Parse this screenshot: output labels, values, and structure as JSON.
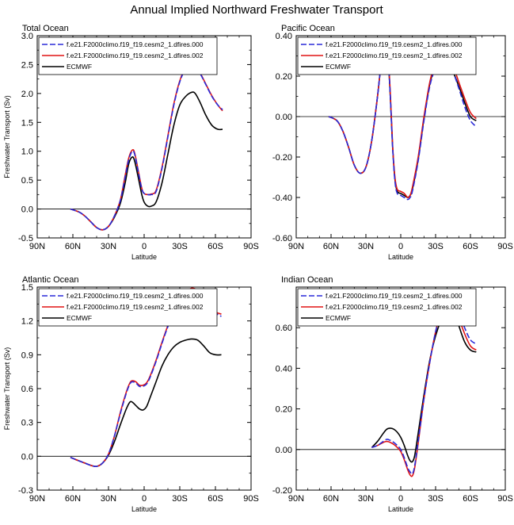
{
  "title": "Annual Implied Northward Freshwater Transport",
  "legend_labels": [
    "f.e21.F2000climo.f19_f19.cesm2_1.dfires.000",
    "f.e21.F2000climo.f19_f19.cesm2_1.dfires.002",
    "ECMWF"
  ],
  "colors": {
    "series_000": "#2a2ad8",
    "series_002": "#e01414",
    "ecmwf": "#000000"
  },
  "chart_data": [
    {
      "type": "line",
      "title": "Total Ocean",
      "xlabel": "Latitude",
      "ylabel": "Freshwater Transport (Sv)",
      "xticks": [
        "90N",
        "60N",
        "30N",
        "0",
        "30S",
        "60S",
        "90S"
      ],
      "yticks": [
        "-0.5",
        "0.0",
        "0.5",
        "1.0",
        "1.5",
        "2.0",
        "2.5",
        "3.0"
      ],
      "ylim": [
        -0.5,
        3.0
      ],
      "xlim": [
        -90,
        90
      ],
      "zero_line": true,
      "series": [
        {
          "name": "f.e21.F2000climo.f19_f19.cesm2_1.dfires.000",
          "x": [
            -62,
            -55,
            -50,
            -45,
            -40,
            -35,
            -30,
            -25,
            -20,
            -16,
            -13,
            -10,
            -8,
            -5,
            -2,
            0,
            3,
            6,
            10,
            15,
            20,
            25,
            30,
            35,
            40,
            43,
            47,
            52,
            57,
            62,
            66
          ],
          "y": [
            0,
            -0.05,
            -0.12,
            -0.22,
            -0.32,
            -0.36,
            -0.3,
            -0.12,
            0.15,
            0.55,
            0.85,
            1.0,
            0.95,
            0.65,
            0.35,
            0.27,
            0.25,
            0.25,
            0.3,
            0.7,
            1.25,
            1.8,
            2.2,
            2.43,
            2.5,
            2.47,
            2.35,
            2.15,
            1.95,
            1.8,
            1.72
          ]
        },
        {
          "name": "f.e21.F2000climo.f19_f19.cesm2_1.dfires.002",
          "x": [
            -62,
            -55,
            -50,
            -45,
            -40,
            -35,
            -30,
            -25,
            -20,
            -16,
            -13,
            -10,
            -8,
            -5,
            -2,
            0,
            3,
            6,
            10,
            15,
            20,
            25,
            30,
            35,
            40,
            43,
            47,
            52,
            57,
            62,
            66
          ],
          "y": [
            0,
            -0.05,
            -0.12,
            -0.22,
            -0.32,
            -0.36,
            -0.3,
            -0.12,
            0.16,
            0.58,
            0.88,
            1.02,
            0.97,
            0.67,
            0.36,
            0.27,
            0.25,
            0.26,
            0.32,
            0.72,
            1.27,
            1.82,
            2.22,
            2.45,
            2.51,
            2.48,
            2.36,
            2.16,
            1.96,
            1.8,
            1.7
          ]
        },
        {
          "name": "ECMWF",
          "x": [
            -62,
            -55,
            -50,
            -45,
            -40,
            -35,
            -30,
            -25,
            -20,
            -16,
            -13,
            -10,
            -8,
            -5,
            -2,
            0,
            3,
            6,
            10,
            15,
            20,
            25,
            30,
            35,
            40,
            43,
            47,
            52,
            57,
            62,
            66
          ],
          "y": [
            0,
            -0.05,
            -0.12,
            -0.22,
            -0.32,
            -0.36,
            -0.3,
            -0.14,
            0.1,
            0.45,
            0.78,
            0.9,
            0.83,
            0.55,
            0.25,
            0.12,
            0.05,
            0.05,
            0.12,
            0.45,
            0.95,
            1.45,
            1.8,
            1.95,
            2.02,
            2.0,
            1.85,
            1.62,
            1.45,
            1.38,
            1.38
          ]
        }
      ]
    },
    {
      "type": "line",
      "title": "Pacific Ocean",
      "xlabel": "Latitude",
      "ylabel": "",
      "xticks": [
        "90N",
        "60N",
        "30N",
        "0",
        "30S",
        "60S",
        "90S"
      ],
      "yticks": [
        "-0.60",
        "-0.40",
        "-0.20",
        "0.00",
        "0.20",
        "0.40"
      ],
      "ylim": [
        -0.6,
        0.4
      ],
      "xlim": [
        -90,
        90
      ],
      "zero_line": true,
      "series": [
        {
          "name": "f.e21.F2000climo.f19_f19.cesm2_1.dfires.000",
          "x": [
            -62,
            -55,
            -50,
            -45,
            -40,
            -35,
            -30,
            -25,
            -20,
            -17,
            -15,
            -13,
            -11,
            -9,
            -7,
            -5,
            -3,
            0,
            3,
            6,
            8,
            10,
            15,
            20,
            25,
            30,
            35,
            40,
            45,
            50,
            55,
            60,
            65
          ],
          "y": [
            0,
            -0.02,
            -0.07,
            -0.15,
            -0.24,
            -0.28,
            -0.25,
            -0.12,
            0.1,
            0.26,
            0.34,
            0.36,
            0.3,
            0.1,
            -0.15,
            -0.32,
            -0.38,
            -0.39,
            -0.4,
            -0.41,
            -0.4,
            -0.37,
            -0.22,
            -0.02,
            0.15,
            0.24,
            0.27,
            0.26,
            0.22,
            0.14,
            0.05,
            -0.02,
            -0.05
          ]
        },
        {
          "name": "f.e21.F2000climo.f19_f19.cesm2_1.dfires.002",
          "x": [
            -62,
            -55,
            -50,
            -45,
            -40,
            -35,
            -30,
            -25,
            -20,
            -17,
            -15,
            -13,
            -11,
            -9,
            -7,
            -5,
            -3,
            0,
            3,
            6,
            8,
            10,
            15,
            20,
            25,
            30,
            35,
            40,
            45,
            50,
            55,
            60,
            65
          ],
          "y": [
            0,
            -0.02,
            -0.07,
            -0.15,
            -0.24,
            -0.28,
            -0.25,
            -0.12,
            0.1,
            0.26,
            0.34,
            0.37,
            0.31,
            0.12,
            -0.14,
            -0.3,
            -0.36,
            -0.37,
            -0.38,
            -0.4,
            -0.39,
            -0.35,
            -0.2,
            0.0,
            0.17,
            0.27,
            0.3,
            0.29,
            0.25,
            0.17,
            0.09,
            0.02,
            -0.01
          ]
        },
        {
          "name": "ECMWF",
          "x": [
            -62,
            -55,
            -50,
            -45,
            -40,
            -35,
            -30,
            -25,
            -20,
            -17,
            -15,
            -13,
            -11,
            -9,
            -7,
            -5,
            -3,
            0,
            3,
            6,
            8,
            10,
            15,
            20,
            25,
            30,
            35,
            40,
            45,
            50,
            55,
            60,
            65
          ],
          "y": [
            0,
            -0.02,
            -0.07,
            -0.15,
            -0.24,
            -0.28,
            -0.25,
            -0.12,
            0.1,
            0.26,
            0.34,
            0.36,
            0.3,
            0.1,
            -0.15,
            -0.31,
            -0.37,
            -0.38,
            -0.39,
            -0.4,
            -0.39,
            -0.36,
            -0.21,
            -0.01,
            0.16,
            0.25,
            0.27,
            0.26,
            0.22,
            0.15,
            0.07,
            0.0,
            -0.02
          ]
        }
      ]
    },
    {
      "type": "line",
      "title": "Atlantic Ocean",
      "xlabel": "Latitude",
      "ylabel": "Freshwater Transport (Sv)",
      "xticks": [
        "90N",
        "60N",
        "30N",
        "0",
        "30S",
        "60S",
        "90S"
      ],
      "yticks": [
        "-0.3",
        "0.0",
        "0.3",
        "0.6",
        "0.9",
        "1.2",
        "1.5"
      ],
      "ylim": [
        -0.3,
        1.5
      ],
      "xlim": [
        -90,
        90
      ],
      "zero_line": true,
      "series": [
        {
          "name": "f.e21.F2000climo.f19_f19.cesm2_1.dfires.000",
          "x": [
            -62,
            -55,
            -50,
            -45,
            -40,
            -35,
            -30,
            -25,
            -20,
            -15,
            -12,
            -10,
            -7,
            -4,
            -1,
            2,
            5,
            10,
            15,
            20,
            25,
            30,
            35,
            40,
            45,
            50,
            55,
            60,
            65
          ],
          "y": [
            -0.01,
            -0.04,
            -0.06,
            -0.08,
            -0.09,
            -0.06,
            0.02,
            0.18,
            0.38,
            0.56,
            0.64,
            0.66,
            0.65,
            0.62,
            0.62,
            0.64,
            0.7,
            0.84,
            1.0,
            1.15,
            1.27,
            1.37,
            1.44,
            1.48,
            1.46,
            1.4,
            1.32,
            1.27,
            1.24
          ]
        },
        {
          "name": "f.e21.F2000climo.f19_f19.cesm2_1.dfires.002",
          "x": [
            -62,
            -55,
            -50,
            -45,
            -40,
            -35,
            -30,
            -25,
            -20,
            -15,
            -12,
            -10,
            -7,
            -4,
            -1,
            2,
            5,
            10,
            15,
            20,
            25,
            30,
            35,
            40,
            45,
            50,
            55,
            60,
            65
          ],
          "y": [
            -0.01,
            -0.04,
            -0.06,
            -0.08,
            -0.09,
            -0.06,
            0.02,
            0.18,
            0.39,
            0.57,
            0.65,
            0.67,
            0.66,
            0.63,
            0.63,
            0.65,
            0.71,
            0.85,
            1.01,
            1.16,
            1.28,
            1.38,
            1.45,
            1.49,
            1.47,
            1.41,
            1.33,
            1.28,
            1.26
          ]
        },
        {
          "name": "ECMWF",
          "x": [
            -62,
            -55,
            -50,
            -45,
            -40,
            -35,
            -30,
            -25,
            -20,
            -15,
            -12,
            -10,
            -7,
            -4,
            -1,
            2,
            5,
            10,
            15,
            20,
            25,
            30,
            35,
            40,
            45,
            50,
            55,
            60,
            65
          ],
          "y": [
            -0.01,
            -0.04,
            -0.06,
            -0.08,
            -0.09,
            -0.06,
            0.01,
            0.13,
            0.28,
            0.42,
            0.48,
            0.48,
            0.45,
            0.42,
            0.41,
            0.44,
            0.52,
            0.66,
            0.8,
            0.9,
            0.97,
            1.01,
            1.03,
            1.04,
            1.03,
            0.98,
            0.92,
            0.9,
            0.9
          ]
        }
      ]
    },
    {
      "type": "line",
      "title": "Indian Ocean",
      "xlabel": "Latitude",
      "ylabel": "",
      "xticks": [
        "90N",
        "60N",
        "30N",
        "0",
        "30S",
        "60S",
        "90S"
      ],
      "yticks": [
        "-0.20",
        "0.00",
        "0.20",
        "0.40",
        "0.60"
      ],
      "ylim": [
        -0.2,
        0.8
      ],
      "xlim": [
        -90,
        90
      ],
      "zero_line": true,
      "series": [
        {
          "name": "f.e21.F2000climo.f19_f19.cesm2_1.dfires.000",
          "x": [
            -25,
            -20,
            -15,
            -12,
            -9,
            -6,
            -3,
            0,
            3,
            6,
            8,
            10,
            12,
            15,
            20,
            25,
            30,
            35,
            40,
            43,
            46,
            50,
            55,
            60,
            65
          ],
          "y": [
            0.01,
            0.02,
            0.04,
            0.05,
            0.045,
            0.035,
            0.02,
            0.0,
            -0.04,
            -0.09,
            -0.11,
            -0.12,
            -0.08,
            0.04,
            0.25,
            0.43,
            0.58,
            0.69,
            0.76,
            0.77,
            0.75,
            0.68,
            0.6,
            0.54,
            0.52
          ]
        },
        {
          "name": "f.e21.F2000climo.f19_f19.cesm2_1.dfires.002",
          "x": [
            -25,
            -20,
            -15,
            -12,
            -9,
            -6,
            -3,
            0,
            3,
            6,
            8,
            10,
            12,
            15,
            20,
            25,
            30,
            35,
            40,
            43,
            46,
            50,
            55,
            60,
            65
          ],
          "y": [
            0.01,
            0.02,
            0.035,
            0.04,
            0.035,
            0.025,
            0.01,
            -0.01,
            -0.05,
            -0.1,
            -0.125,
            -0.13,
            -0.09,
            0.03,
            0.25,
            0.43,
            0.58,
            0.68,
            0.74,
            0.75,
            0.73,
            0.65,
            0.57,
            0.51,
            0.49
          ]
        },
        {
          "name": "ECMWF",
          "x": [
            -25,
            -20,
            -15,
            -12,
            -9,
            -6,
            -3,
            0,
            3,
            6,
            8,
            10,
            12,
            15,
            20,
            25,
            30,
            35,
            40,
            43,
            46,
            50,
            55,
            60,
            65
          ],
          "y": [
            0.01,
            0.04,
            0.08,
            0.1,
            0.105,
            0.1,
            0.085,
            0.06,
            0.02,
            -0.03,
            -0.055,
            -0.06,
            -0.03,
            0.08,
            0.27,
            0.44,
            0.56,
            0.64,
            0.69,
            0.7,
            0.68,
            0.61,
            0.53,
            0.49,
            0.48
          ]
        }
      ]
    }
  ]
}
